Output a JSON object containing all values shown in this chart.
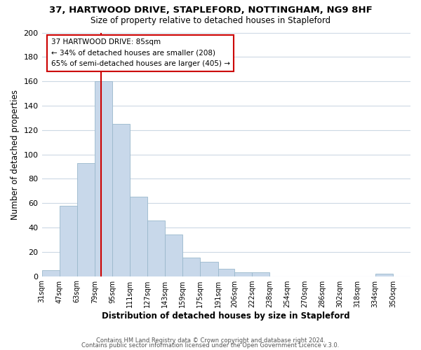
{
  "title": "37, HARTWOOD DRIVE, STAPLEFORD, NOTTINGHAM, NG9 8HF",
  "subtitle": "Size of property relative to detached houses in Stapleford",
  "xlabel": "Distribution of detached houses by size in Stapleford",
  "ylabel": "Number of detached properties",
  "bar_color": "#c8d8ea",
  "bar_edge_color": "#9ab8cc",
  "categories": [
    "31sqm",
    "47sqm",
    "63sqm",
    "79sqm",
    "95sqm",
    "111sqm",
    "127sqm",
    "143sqm",
    "159sqm",
    "175sqm",
    "191sqm",
    "206sqm",
    "222sqm",
    "238sqm",
    "254sqm",
    "270sqm",
    "286sqm",
    "302sqm",
    "318sqm",
    "334sqm",
    "350sqm"
  ],
  "values": [
    5,
    58,
    93,
    160,
    125,
    65,
    46,
    34,
    15,
    12,
    6,
    3,
    3,
    0,
    0,
    0,
    0,
    0,
    0,
    2,
    0
  ],
  "ylim": [
    0,
    200
  ],
  "yticks": [
    0,
    20,
    40,
    60,
    80,
    100,
    120,
    140,
    160,
    180,
    200
  ],
  "property_label": "37 HARTWOOD DRIVE: 85sqm",
  "annotation_line1": "← 34% of detached houses are smaller (208)",
  "annotation_line2": "65% of semi-detached houses are larger (405) →",
  "vline_x": 85,
  "vline_color": "#cc0000",
  "background_color": "#ffffff",
  "grid_color": "#ccd8e4",
  "footer_line1": "Contains HM Land Registry data © Crown copyright and database right 2024.",
  "footer_line2": "Contains public sector information licensed under the Open Government Licence v.3.0."
}
